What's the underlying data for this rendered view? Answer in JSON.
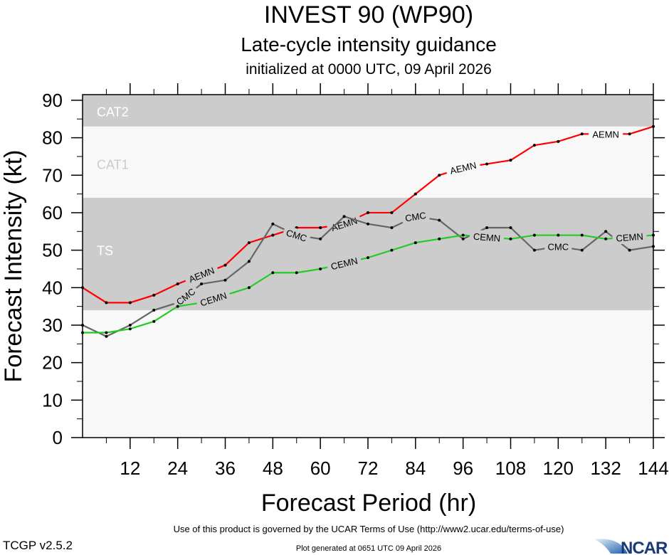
{
  "chart_data": {
    "type": "line",
    "title": "INVEST 90 (WP90)",
    "subtitle": "Late-cycle intensity guidance",
    "subtitle2": "initialized at 0000 UTC, 09 April 2026",
    "xlabel": "Forecast Period (hr)",
    "ylabel": "Forecast Intensity (kt)",
    "xlim": [
      0,
      144
    ],
    "ylim": [
      0,
      91.5
    ],
    "xticks": [
      12,
      24,
      36,
      48,
      60,
      72,
      84,
      96,
      108,
      120,
      132,
      144
    ],
    "yticks": [
      0,
      10,
      20,
      30,
      40,
      50,
      60,
      70,
      80,
      90
    ],
    "grid": false,
    "bands": [
      {
        "label": "TS",
        "from": 34,
        "to": 64,
        "color": "#cccccc",
        "label_color": "#ffffff",
        "label_value": 50
      },
      {
        "label": "CAT1",
        "from": 64,
        "to": 83,
        "color": "#f8f8f8",
        "label_color": "#cccccc",
        "label_value": 73
      },
      {
        "label": "CAT2",
        "from": 83,
        "to": 91.5,
        "color": "#cccccc",
        "label_color": "#ffffff",
        "label_value": 87
      }
    ],
    "background_color": "#f8f8f8",
    "x": [
      0,
      6,
      12,
      18,
      24,
      30,
      36,
      42,
      48,
      54,
      60,
      66,
      72,
      78,
      84,
      90,
      96,
      102,
      108,
      114,
      120,
      126,
      132,
      138,
      144
    ],
    "series": [
      {
        "name": "AEMN",
        "color": "#ff0000",
        "values": [
          40,
          36,
          36,
          38,
          41,
          43.5,
          46,
          52,
          54,
          56,
          56,
          57,
          60,
          60,
          65,
          70,
          72,
          73,
          74,
          78,
          79,
          81,
          81,
          81,
          83
        ],
        "label_hours": [
          30,
          66,
          96,
          132
        ]
      },
      {
        "name": "CMC",
        "color": "#666666",
        "values": [
          30,
          27,
          30,
          34,
          36,
          41,
          42,
          47,
          57,
          54,
          53,
          59,
          57,
          56,
          59,
          58,
          53,
          56,
          56,
          50,
          51,
          50,
          55,
          50,
          51
        ],
        "label_hours": [
          30,
          54,
          84,
          120
        ]
      },
      {
        "name": "CEMN",
        "color": "#22cc22",
        "values": [
          28,
          28,
          29,
          31,
          35,
          36,
          38,
          40,
          44,
          44,
          45,
          46.5,
          48,
          50,
          52,
          53,
          54,
          53.5,
          53,
          54,
          54,
          54,
          53,
          53.5,
          54
        ],
        "label_hours": [
          30,
          66,
          102,
          138
        ]
      }
    ]
  },
  "footer": {
    "terms": "Use of this product is governed by the UCAR Terms of Use (http://www2.ucar.edu/terms-of-use)",
    "version": "TCGP v2.5.2",
    "generated": "Plot generated at 0651 UTC   09 April 2026",
    "logo": "NCAR"
  }
}
